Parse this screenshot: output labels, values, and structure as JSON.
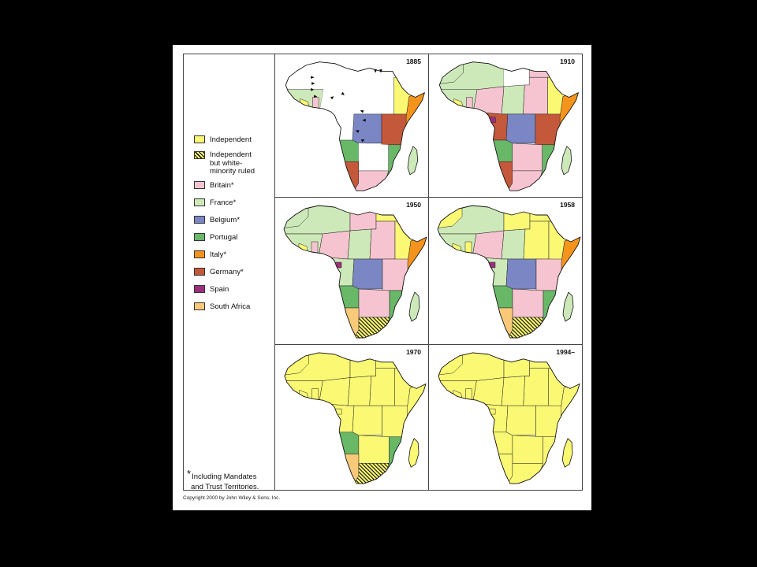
{
  "legend": {
    "items": [
      {
        "label": "Independent",
        "color": "#fbf874"
      },
      {
        "label_lines": [
          "Independent",
          "but white-",
          "minority ruled"
        ],
        "color": "#fbf874",
        "hatched": true
      },
      {
        "label": "Britain*",
        "color": "#f6c4d0"
      },
      {
        "label": "France*",
        "color": "#cde9b9"
      },
      {
        "label": "Belgium*",
        "color": "#7b86c4"
      },
      {
        "label": "Portugal",
        "color": "#68b868"
      },
      {
        "label": "Italy*",
        "color": "#f5941c"
      },
      {
        "label": "Germany*",
        "color": "#c3583b"
      },
      {
        "label": "Spain",
        "color": "#9c2f7d"
      },
      {
        "label": "South Africa",
        "color": "#f9c97a"
      }
    ],
    "unclaimed_color": "#ffffff"
  },
  "maps": [
    {
      "year": "1885",
      "fills": [
        -1,
        3,
        -1,
        -1,
        -1,
        -1,
        -1,
        0,
        -1,
        4,
        7,
        6,
        5,
        -1,
        7,
        2,
        5,
        3,
        -1,
        0,
        2,
        -1
      ]
    },
    {
      "year": "1910",
      "fills": [
        3,
        3,
        2,
        -1,
        2,
        3,
        2,
        0,
        7,
        4,
        7,
        6,
        5,
        2,
        7,
        2,
        5,
        3,
        8,
        0,
        2,
        3
      ]
    },
    {
      "year": "1950",
      "fills": [
        3,
        3,
        2,
        2,
        0,
        3,
        2,
        0,
        3,
        4,
        2,
        6,
        5,
        2,
        9,
        1,
        5,
        3,
        8,
        0,
        2,
        3
      ]
    },
    {
      "year": "1958",
      "fills": [
        3,
        3,
        2,
        0,
        0,
        3,
        0,
        0,
        3,
        4,
        2,
        6,
        5,
        2,
        9,
        1,
        5,
        3,
        8,
        0,
        0,
        0
      ]
    },
    {
      "year": "1970",
      "fills": [
        0,
        0,
        0,
        0,
        0,
        0,
        0,
        0,
        0,
        0,
        0,
        0,
        5,
        0,
        9,
        1,
        5,
        0,
        0,
        0,
        0,
        0
      ]
    },
    {
      "year": "1994–",
      "fills": [
        0,
        0,
        0,
        0,
        0,
        0,
        0,
        0,
        0,
        0,
        0,
        0,
        0,
        0,
        0,
        0,
        0,
        0,
        0,
        0,
        0,
        0
      ]
    }
  ],
  "footnote": {
    "star": "*",
    "lines": [
      "Including Mandates",
      "and Trust Territories."
    ]
  },
  "copyright": "Copyright 2000 by John Wiley & Sons, Inc."
}
